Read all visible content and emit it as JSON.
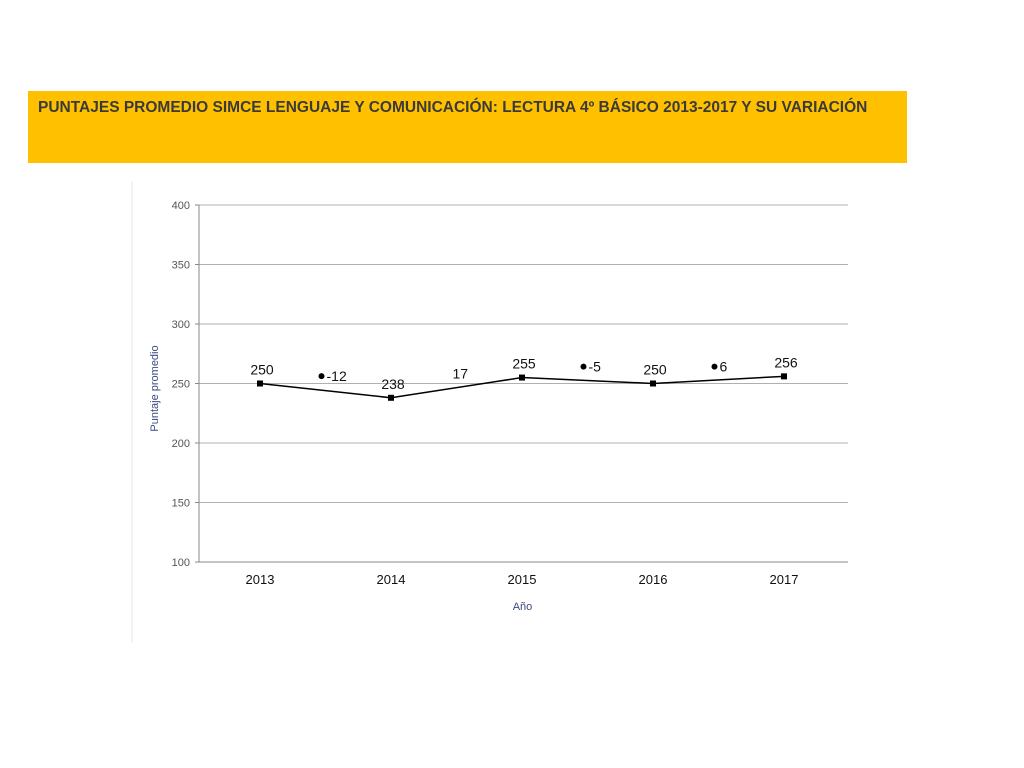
{
  "header": {
    "title": "PUNTAJES PROMEDIO SIMCE LENGUAJE Y COMUNICACIÓN: LECTURA 4º BÁSICO 2013-2017 Y SU VARIACIÓN",
    "background_color": "#ffc000"
  },
  "chart_data": {
    "type": "line",
    "title": "",
    "xlabel": "Año",
    "ylabel": "Puntaje promedio",
    "categories": [
      "2013",
      "2014",
      "2015",
      "2016",
      "2017"
    ],
    "series": [
      {
        "values": [
          250,
          238,
          255,
          250,
          256
        ]
      }
    ],
    "data_labels": [
      "250",
      "238",
      "255",
      "250",
      "256"
    ],
    "variations": [
      {
        "between": [
          "2013",
          "2014"
        ],
        "label": "-12",
        "y": 252,
        "marker": "dot"
      },
      {
        "between": [
          "2014",
          "2015"
        ],
        "label": "17",
        "y": 254,
        "marker": "none"
      },
      {
        "between": [
          "2015",
          "2016"
        ],
        "label": "-5",
        "y": 260,
        "marker": "dot"
      },
      {
        "between": [
          "2016",
          "2017"
        ],
        "label": "6",
        "y": 260,
        "marker": "dot"
      }
    ],
    "ylim": [
      100,
      400
    ],
    "yticks": [
      100,
      150,
      200,
      250,
      300,
      350,
      400
    ],
    "grid": true,
    "legend": "none",
    "line_color": "#000000"
  }
}
